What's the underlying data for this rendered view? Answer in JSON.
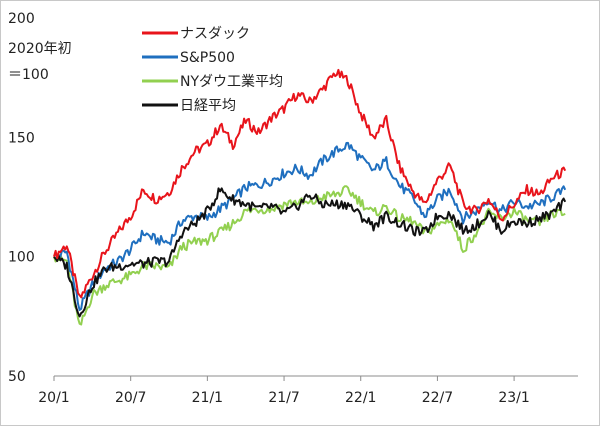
{
  "chart_data": {
    "type": "line",
    "annotation": [
      "2020年初",
      "＝100"
    ],
    "y_ticks": [
      50,
      100,
      150,
      200
    ],
    "ylim": [
      50,
      200
    ],
    "x_ticks": [
      {
        "label": "20/1",
        "date": "2020-01"
      },
      {
        "label": "20/7",
        "date": "2020-07"
      },
      {
        "label": "21/1",
        "date": "2021-01"
      },
      {
        "label": "21/7",
        "date": "2021-07"
      },
      {
        "label": "22/1",
        "date": "2022-01"
      },
      {
        "label": "22/7",
        "date": "2022-07"
      },
      {
        "label": "23/1",
        "date": "2023-01"
      }
    ],
    "xlim": [
      "2020-01",
      "2023-06"
    ],
    "grid": false,
    "legend_position": "top-left",
    "series": [
      {
        "name": "ナスダック",
        "color": "#e8141b",
        "x": [
          "2020-01",
          "2020-02",
          "2020-03",
          "2020-04",
          "2020-05",
          "2020-06",
          "2020-07",
          "2020-08",
          "2020-09",
          "2020-10",
          "2020-11",
          "2020-12",
          "2021-01",
          "2021-02",
          "2021-03",
          "2021-04",
          "2021-05",
          "2021-06",
          "2021-07",
          "2021-08",
          "2021-09",
          "2021-10",
          "2021-11",
          "2021-12",
          "2022-01",
          "2022-02",
          "2022-03",
          "2022-04",
          "2022-05",
          "2022-06",
          "2022-07",
          "2022-08",
          "2022-09",
          "2022-10",
          "2022-11",
          "2022-12",
          "2023-01",
          "2023-02",
          "2023-03",
          "2023-04",
          "2023-05"
        ],
        "y": [
          100,
          105,
          82,
          92,
          102,
          110,
          117,
          128,
          124,
          127,
          137,
          144,
          147,
          155,
          147,
          157,
          152,
          158,
          162,
          168,
          165,
          170,
          177,
          174,
          160,
          150,
          157,
          138,
          128,
          122,
          132,
          138,
          122,
          119,
          124,
          116,
          122,
          128,
          126,
          133,
          136
        ]
      },
      {
        "name": "S&P500",
        "color": "#1f6fbf",
        "x": [
          "2020-01",
          "2020-02",
          "2020-03",
          "2020-04",
          "2020-05",
          "2020-06",
          "2020-07",
          "2020-08",
          "2020-09",
          "2020-10",
          "2020-11",
          "2020-12",
          "2021-01",
          "2021-02",
          "2021-03",
          "2021-04",
          "2021-05",
          "2021-06",
          "2021-07",
          "2021-08",
          "2021-09",
          "2021-10",
          "2021-11",
          "2021-12",
          "2022-01",
          "2022-02",
          "2022-03",
          "2022-04",
          "2022-05",
          "2022-06",
          "2022-07",
          "2022-08",
          "2022-09",
          "2022-10",
          "2022-11",
          "2022-12",
          "2023-01",
          "2023-02",
          "2023-03",
          "2023-04",
          "2023-05"
        ],
        "y": [
          100,
          102,
          78,
          88,
          95,
          98,
          103,
          110,
          107,
          106,
          115,
          117,
          116,
          120,
          124,
          129,
          130,
          132,
          135,
          137,
          134,
          140,
          144,
          147,
          141,
          136,
          140,
          130,
          125,
          117,
          124,
          128,
          116,
          119,
          124,
          119,
          123,
          121,
          122,
          125,
          128
        ]
      },
      {
        "name": "NYダウ工業平均",
        "color": "#92d050",
        "x": [
          "2020-01",
          "2020-02",
          "2020-03",
          "2020-04",
          "2020-05",
          "2020-06",
          "2020-07",
          "2020-08",
          "2020-09",
          "2020-10",
          "2020-11",
          "2020-12",
          "2021-01",
          "2021-02",
          "2021-03",
          "2021-04",
          "2021-05",
          "2021-06",
          "2021-07",
          "2021-08",
          "2021-09",
          "2021-10",
          "2021-11",
          "2021-12",
          "2022-01",
          "2022-02",
          "2022-03",
          "2022-04",
          "2022-05",
          "2022-06",
          "2022-07",
          "2022-08",
          "2022-09",
          "2022-10",
          "2022-11",
          "2022-12",
          "2023-01",
          "2023-02",
          "2023-03",
          "2023-04",
          "2023-05"
        ],
        "y": [
          100,
          98,
          70,
          84,
          88,
          90,
          92,
          96,
          96,
          95,
          104,
          106,
          107,
          110,
          114,
          119,
          120,
          120,
          122,
          123,
          122,
          125,
          126,
          128,
          123,
          118,
          121,
          116,
          115,
          110,
          113,
          116,
          103,
          110,
          118,
          116,
          119,
          115,
          114,
          118,
          118
        ]
      },
      {
        "name": "日経平均",
        "color": "#111111",
        "x": [
          "2020-01",
          "2020-02",
          "2020-03",
          "2020-04",
          "2020-05",
          "2020-06",
          "2020-07",
          "2020-08",
          "2020-09",
          "2020-10",
          "2020-11",
          "2020-12",
          "2021-01",
          "2021-02",
          "2021-03",
          "2021-04",
          "2021-05",
          "2021-06",
          "2021-07",
          "2021-08",
          "2021-09",
          "2021-10",
          "2021-11",
          "2021-12",
          "2022-01",
          "2022-02",
          "2022-03",
          "2022-04",
          "2022-05",
          "2022-06",
          "2022-07",
          "2022-08",
          "2022-09",
          "2022-10",
          "2022-11",
          "2022-12",
          "2023-01",
          "2023-02",
          "2023-03",
          "2023-04",
          "2023-05"
        ],
        "y": [
          100,
          96,
          75,
          88,
          95,
          96,
          97,
          97,
          98,
          98,
          110,
          114,
          119,
          128,
          124,
          122,
          120,
          121,
          118,
          121,
          126,
          122,
          122,
          122,
          117,
          113,
          117,
          114,
          111,
          110,
          117,
          118,
          111,
          113,
          118,
          111,
          115,
          114,
          116,
          118,
          123
        ]
      }
    ]
  }
}
